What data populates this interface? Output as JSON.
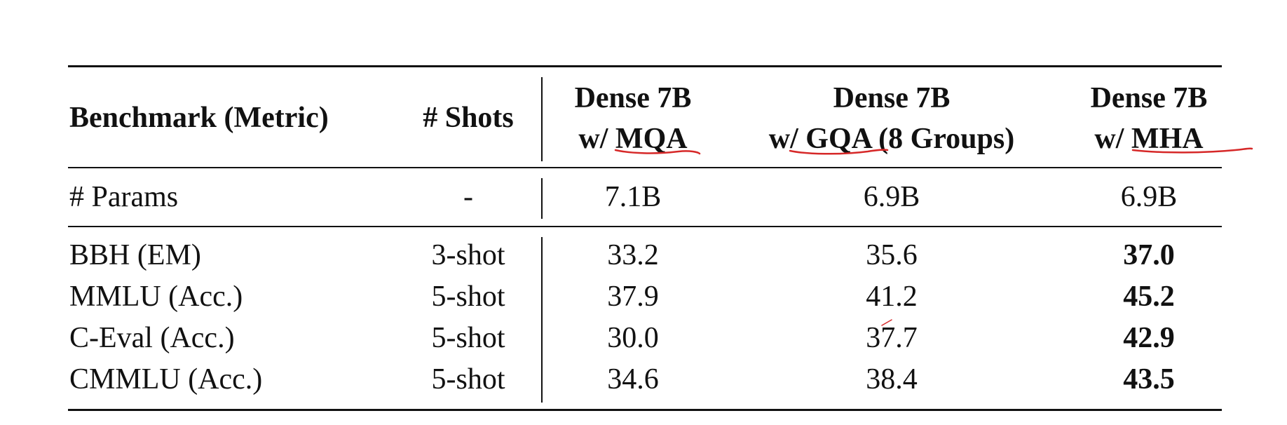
{
  "table": {
    "header": {
      "benchmark": "Benchmark (Metric)",
      "shots": "# Shots",
      "col1_line1": "Dense 7B",
      "col1_line2_prefix": "w/ ",
      "col1_line2_key": "MQA",
      "col2_line1": "Dense 7B",
      "col2_line2_prefix": "w/ ",
      "col2_line2_key": "GQA",
      "col2_line2_suffix": " (8 Groups)",
      "col3_line1": "Dense 7B",
      "col3_line2_prefix": "w/ ",
      "col3_line2_key": "MHA"
    },
    "params_row": {
      "label": "# Params",
      "shots": "-",
      "mqa": "7.1B",
      "gqa": "6.9B",
      "mha": "6.9B"
    },
    "rows": [
      {
        "benchmark": "BBH (EM)",
        "shots": "3-shot",
        "mqa": "33.2",
        "gqa": "35.6",
        "mha": "37.0"
      },
      {
        "benchmark": "MMLU (Acc.)",
        "shots": "5-shot",
        "mqa": "37.9",
        "gqa": "41.2",
        "mha": "45.2"
      },
      {
        "benchmark": "C-Eval (Acc.)",
        "shots": "5-shot",
        "mqa": "30.0",
        "gqa": "37.7",
        "mha": "42.9"
      },
      {
        "benchmark": "CMMLU (Acc.)",
        "shots": "5-shot",
        "mqa": "34.6",
        "gqa": "38.4",
        "mha": "43.5"
      }
    ]
  },
  "annotation_color": "#d62828"
}
